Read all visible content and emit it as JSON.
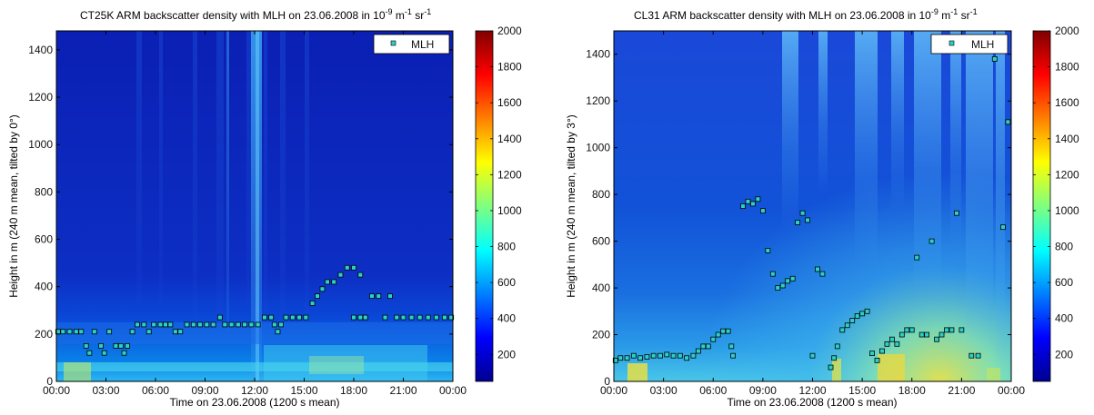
{
  "chart_data": [
    {
      "type": "heatmap",
      "title_main": "CT25K ARM backscatter density with MLH on 23.06.2008 in 10",
      "title_sup1": "-9",
      "title_mid": " m",
      "title_sup2": "-1",
      "title_mid2": " sr",
      "title_sup3": "-1",
      "xlabel": "Time on 23.06.2008 (1200 s mean)",
      "ylabel": "Height in m (240 m mean, tilted by 0°)",
      "xticks": [
        "00:00",
        "03:00",
        "06:00",
        "09:00",
        "12:00",
        "15:00",
        "18:00",
        "21:00",
        "00:00"
      ],
      "xlim": [
        0,
        24
      ],
      "ylim": [
        0,
        1480
      ],
      "yticks": [
        0,
        200,
        400,
        600,
        800,
        1000,
        1200,
        1400
      ],
      "colorbar": {
        "min": 50,
        "max": 2000,
        "ticks": [
          200,
          400,
          600,
          800,
          1000,
          1200,
          1400,
          1600,
          1800,
          2000
        ]
      },
      "legend": {
        "label": "MLH",
        "position": "top-right"
      },
      "mlh": {
        "name": "MLH",
        "points": [
          [
            0.1,
            210
          ],
          [
            0.4,
            210
          ],
          [
            0.8,
            210
          ],
          [
            1.2,
            210
          ],
          [
            1.5,
            210
          ],
          [
            1.8,
            150
          ],
          [
            2.0,
            120
          ],
          [
            2.3,
            210
          ],
          [
            2.7,
            150
          ],
          [
            2.9,
            120
          ],
          [
            3.2,
            210
          ],
          [
            3.6,
            150
          ],
          [
            3.9,
            150
          ],
          [
            4.1,
            120
          ],
          [
            4.3,
            150
          ],
          [
            4.6,
            210
          ],
          [
            4.9,
            240
          ],
          [
            5.3,
            240
          ],
          [
            5.6,
            210
          ],
          [
            5.9,
            240
          ],
          [
            6.3,
            240
          ],
          [
            6.6,
            240
          ],
          [
            6.9,
            240
          ],
          [
            7.2,
            210
          ],
          [
            7.5,
            210
          ],
          [
            7.9,
            240
          ],
          [
            8.3,
            240
          ],
          [
            8.7,
            240
          ],
          [
            9.1,
            240
          ],
          [
            9.5,
            240
          ],
          [
            9.9,
            270
          ],
          [
            10.2,
            240
          ],
          [
            10.6,
            240
          ],
          [
            11.0,
            240
          ],
          [
            11.4,
            240
          ],
          [
            11.8,
            240
          ],
          [
            12.2,
            240
          ],
          [
            12.6,
            270
          ],
          [
            13.0,
            270
          ],
          [
            13.2,
            240
          ],
          [
            13.4,
            210
          ],
          [
            13.6,
            240
          ],
          [
            13.9,
            270
          ],
          [
            14.3,
            270
          ],
          [
            14.7,
            270
          ],
          [
            15.1,
            270
          ],
          [
            15.5,
            330
          ],
          [
            15.8,
            360
          ],
          [
            16.1,
            390
          ],
          [
            16.4,
            420
          ],
          [
            16.8,
            420
          ],
          [
            17.2,
            450
          ],
          [
            17.6,
            480
          ],
          [
            18.0,
            480
          ],
          [
            18.4,
            450
          ],
          [
            18.0,
            270
          ],
          [
            18.4,
            270
          ],
          [
            18.7,
            270
          ],
          [
            19.1,
            360
          ],
          [
            19.5,
            360
          ],
          [
            19.9,
            270
          ],
          [
            20.2,
            360
          ],
          [
            20.6,
            270
          ],
          [
            21.0,
            270
          ],
          [
            21.5,
            270
          ],
          [
            22.0,
            270
          ],
          [
            22.5,
            270
          ],
          [
            23.0,
            270
          ],
          [
            23.5,
            270
          ],
          [
            23.9,
            270
          ]
        ]
      }
    },
    {
      "type": "heatmap",
      "title_main": "CL31 ARM backscatter density with MLH on 23.06.2008 in 10",
      "title_sup1": "-9",
      "title_mid": " m",
      "title_sup2": "-1",
      "title_mid2": " sr",
      "title_sup3": "-1",
      "xlabel": "Time on 23.06.2008 (1200 s mean)",
      "ylabel": "Height in m (240 m mean, tilted by 3°)",
      "xticks": [
        "00:00",
        "03:00",
        "06:00",
        "09:00",
        "12:00",
        "15:00",
        "18:00",
        "21:00",
        "00:00"
      ],
      "xlim": [
        0,
        24
      ],
      "ylim": [
        0,
        1500
      ],
      "yticks": [
        0,
        200,
        400,
        600,
        800,
        1000,
        1200,
        1400
      ],
      "colorbar": {
        "min": 50,
        "max": 2000,
        "ticks": [
          200,
          400,
          600,
          800,
          1000,
          1200,
          1400,
          1600,
          1800,
          2000
        ]
      },
      "legend": {
        "label": "MLH",
        "position": "top-right"
      },
      "mlh": {
        "name": "MLH",
        "points": [
          [
            0.1,
            90
          ],
          [
            0.4,
            100
          ],
          [
            0.8,
            100
          ],
          [
            1.2,
            110
          ],
          [
            1.6,
            100
          ],
          [
            2.0,
            105
          ],
          [
            2.4,
            110
          ],
          [
            2.8,
            110
          ],
          [
            3.2,
            115
          ],
          [
            3.6,
            110
          ],
          [
            4.0,
            110
          ],
          [
            4.4,
            100
          ],
          [
            4.8,
            110
          ],
          [
            5.1,
            130
          ],
          [
            5.4,
            150
          ],
          [
            5.7,
            150
          ],
          [
            6.0,
            180
          ],
          [
            6.3,
            200
          ],
          [
            6.6,
            215
          ],
          [
            6.9,
            215
          ],
          [
            7.1,
            150
          ],
          [
            7.2,
            110
          ],
          [
            7.8,
            750
          ],
          [
            8.1,
            770
          ],
          [
            8.4,
            760
          ],
          [
            8.7,
            780
          ],
          [
            9.0,
            730
          ],
          [
            9.3,
            560
          ],
          [
            9.6,
            460
          ],
          [
            9.9,
            400
          ],
          [
            10.2,
            410
          ],
          [
            10.5,
            430
          ],
          [
            10.8,
            440
          ],
          [
            11.1,
            680
          ],
          [
            11.4,
            720
          ],
          [
            11.7,
            690
          ],
          [
            12.0,
            110
          ],
          [
            12.3,
            480
          ],
          [
            12.6,
            460
          ],
          [
            13.1,
            60
          ],
          [
            13.3,
            100
          ],
          [
            13.5,
            150
          ],
          [
            13.8,
            220
          ],
          [
            14.1,
            240
          ],
          [
            14.4,
            260
          ],
          [
            14.7,
            280
          ],
          [
            15.0,
            290
          ],
          [
            15.3,
            300
          ],
          [
            15.6,
            120
          ],
          [
            15.9,
            90
          ],
          [
            16.2,
            130
          ],
          [
            16.5,
            160
          ],
          [
            16.8,
            180
          ],
          [
            17.1,
            160
          ],
          [
            17.4,
            200
          ],
          [
            17.7,
            220
          ],
          [
            18.0,
            220
          ],
          [
            18.3,
            530
          ],
          [
            18.6,
            200
          ],
          [
            18.9,
            200
          ],
          [
            19.2,
            600
          ],
          [
            19.5,
            180
          ],
          [
            19.8,
            200
          ],
          [
            20.1,
            220
          ],
          [
            20.4,
            220
          ],
          [
            20.7,
            720
          ],
          [
            21.0,
            220
          ],
          [
            21.6,
            110
          ],
          [
            22.0,
            110
          ],
          [
            23.0,
            1380
          ],
          [
            23.5,
            660
          ],
          [
            23.8,
            1110
          ]
        ]
      }
    }
  ]
}
